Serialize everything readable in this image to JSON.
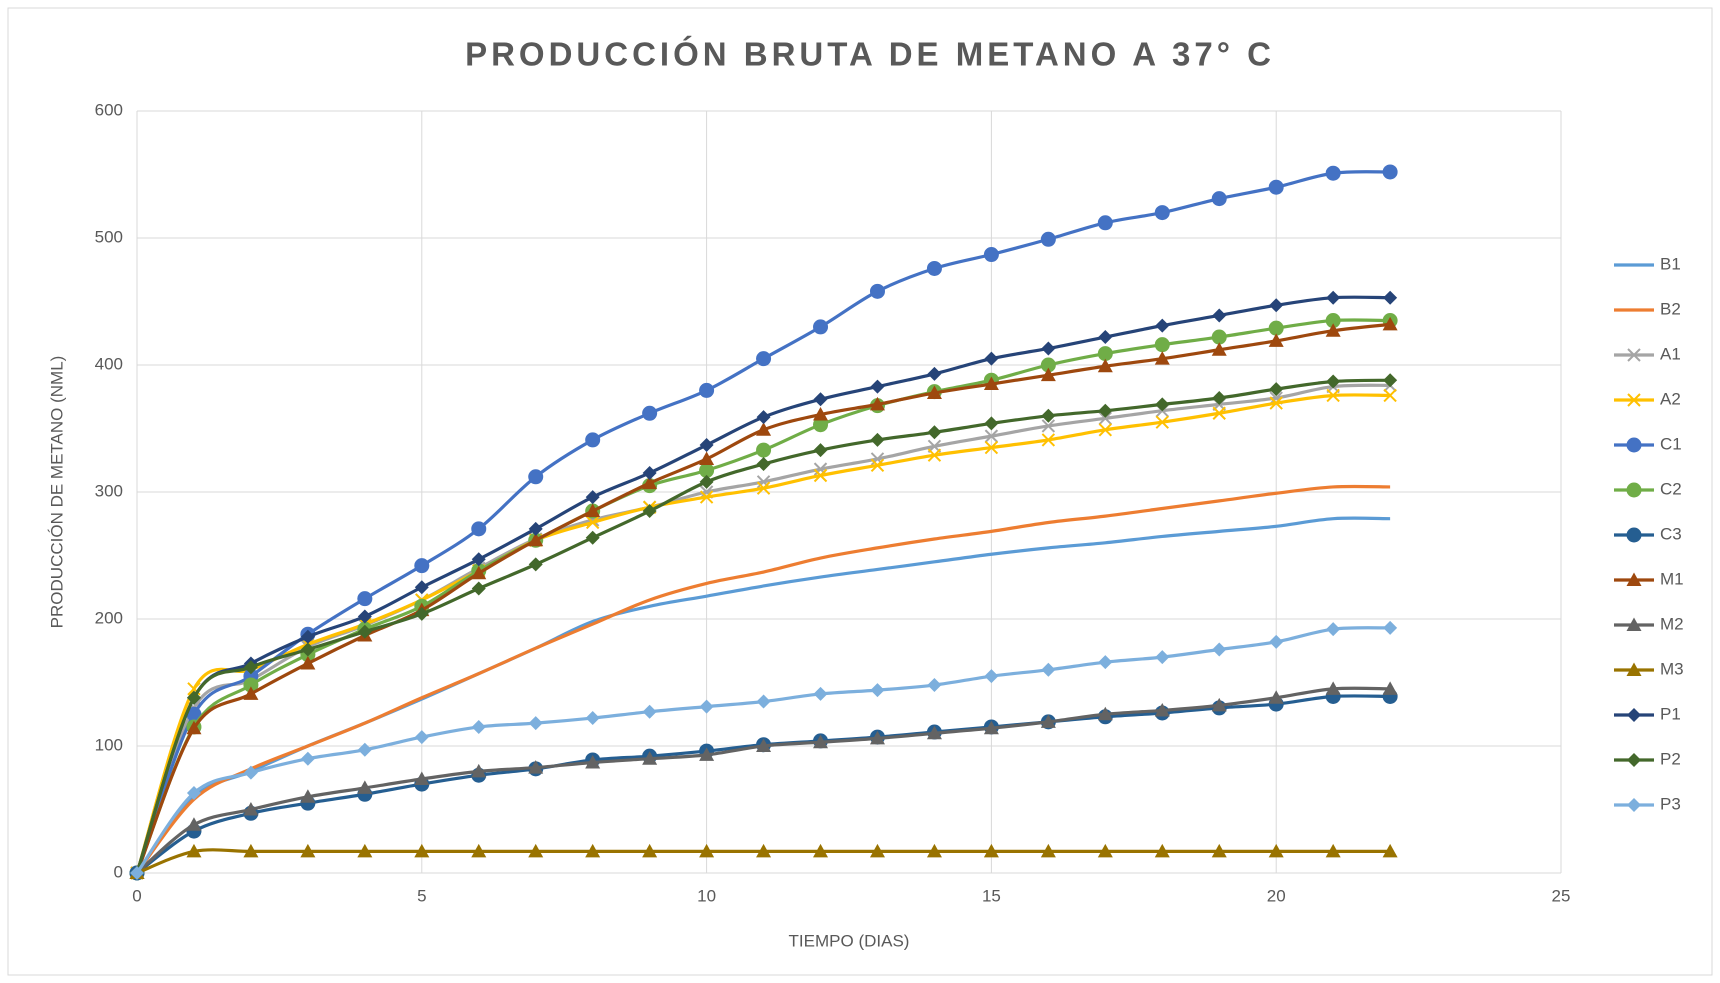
{
  "chart_data": {
    "type": "line",
    "title": "PRODUCCIÓN BRUTA DE METANO A 37° C",
    "x_label": "TIEMPO (DIAS)",
    "y_label": "PRODUCCIÓN DE METANO (NML)",
    "x": [
      0,
      1,
      2,
      3,
      4,
      5,
      6,
      7,
      8,
      9,
      10,
      11,
      12,
      13,
      14,
      15,
      16,
      17,
      18,
      19,
      20,
      21,
      22
    ],
    "xlim": [
      0,
      25
    ],
    "xticks": [
      0,
      5,
      10,
      15,
      20,
      25
    ],
    "ylim": [
      0,
      600
    ],
    "yticks": [
      0,
      100,
      200,
      300,
      400,
      500,
      600
    ],
    "grid": true,
    "smooth": true,
    "legend": "right",
    "series": [
      {
        "name": "B1",
        "color": "#5b9bd5",
        "marker": "none",
        "values": [
          0,
          60,
          80,
          100,
          118,
          137,
          157,
          177,
          198,
          210,
          218,
          226,
          233,
          239,
          245,
          251,
          256,
          260,
          265,
          269,
          273,
          279,
          279
        ]
      },
      {
        "name": "B2",
        "color": "#ed7d31",
        "marker": "none",
        "values": [
          0,
          58,
          82,
          100,
          118,
          138,
          157,
          177,
          196,
          215,
          228,
          237,
          248,
          256,
          263,
          269,
          276,
          281,
          287,
          293,
          299,
          304,
          304
        ]
      },
      {
        "name": "A1",
        "color": "#a5a5a5",
        "marker": "x",
        "values": [
          0,
          130,
          152,
          178,
          195,
          215,
          240,
          263,
          278,
          288,
          300,
          308,
          318,
          326,
          336,
          344,
          352,
          358,
          364,
          369,
          374,
          383,
          384
        ]
      },
      {
        "name": "A2",
        "color": "#ffc000",
        "marker": "x",
        "values": [
          0,
          145,
          160,
          180,
          196,
          215,
          238,
          262,
          276,
          288,
          296,
          303,
          313,
          321,
          329,
          335,
          341,
          349,
          355,
          362,
          370,
          376,
          376
        ]
      },
      {
        "name": "C1",
        "color": "#4472c4",
        "marker": "circle",
        "values": [
          0,
          125,
          155,
          188,
          216,
          242,
          271,
          312,
          341,
          362,
          380,
          405,
          430,
          458,
          476,
          487,
          499,
          512,
          520,
          531,
          540,
          551,
          552
        ]
      },
      {
        "name": "C2",
        "color": "#70ad47",
        "marker": "circle",
        "values": [
          0,
          115,
          148,
          172,
          192,
          210,
          238,
          262,
          285,
          305,
          317,
          333,
          353,
          368,
          379,
          388,
          400,
          409,
          416,
          422,
          429,
          435,
          435
        ]
      },
      {
        "name": "C3",
        "color": "#255e91",
        "marker": "circle",
        "values": [
          0,
          33,
          47,
          55,
          62,
          70,
          77,
          82,
          89,
          92,
          96,
          101,
          104,
          107,
          111,
          115,
          119,
          123,
          126,
          130,
          133,
          139,
          139
        ]
      },
      {
        "name": "M1",
        "color": "#9e480e",
        "marker": "triangle",
        "values": [
          0,
          114,
          141,
          165,
          187,
          207,
          236,
          262,
          285,
          307,
          326,
          349,
          361,
          369,
          378,
          385,
          392,
          399,
          405,
          412,
          419,
          427,
          432
        ]
      },
      {
        "name": "M2",
        "color": "#636363",
        "marker": "triangle",
        "values": [
          0,
          38,
          50,
          60,
          67,
          74,
          80,
          83,
          87,
          90,
          93,
          100,
          103,
          106,
          110,
          114,
          119,
          125,
          128,
          132,
          138,
          145,
          145
        ]
      },
      {
        "name": "M3",
        "color": "#997300",
        "marker": "triangle",
        "values": [
          0,
          17,
          17,
          17,
          17,
          17,
          17,
          17,
          17,
          17,
          17,
          17,
          17,
          17,
          17,
          17,
          17,
          17,
          17,
          17,
          17,
          17,
          17
        ]
      },
      {
        "name": "P1",
        "color": "#264478",
        "marker": "diamond",
        "values": [
          0,
          138,
          165,
          186,
          202,
          225,
          247,
          271,
          296,
          315,
          337,
          359,
          373,
          383,
          393,
          405,
          413,
          422,
          431,
          439,
          447,
          453,
          453
        ]
      },
      {
        "name": "P2",
        "color": "#43682b",
        "marker": "diamond",
        "values": [
          0,
          138,
          162,
          176,
          190,
          204,
          224,
          243,
          264,
          285,
          308,
          322,
          333,
          341,
          347,
          354,
          360,
          364,
          369,
          374,
          381,
          387,
          388
        ]
      },
      {
        "name": "P3",
        "color": "#7cafdd",
        "marker": "diamond",
        "values": [
          0,
          63,
          79,
          90,
          97,
          107,
          115,
          118,
          122,
          127,
          131,
          135,
          141,
          144,
          148,
          155,
          160,
          166,
          170,
          176,
          182,
          192,
          193
        ]
      }
    ]
  }
}
